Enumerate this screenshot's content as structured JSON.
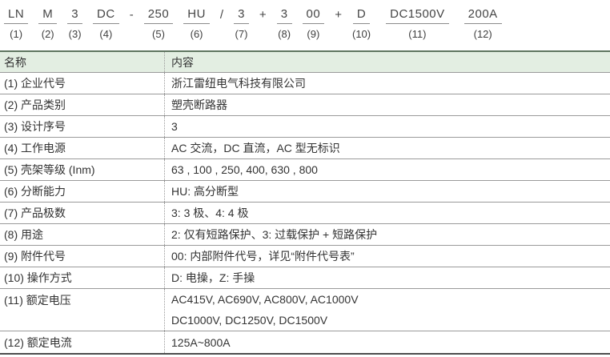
{
  "model_code": {
    "segments": [
      {
        "code": "LN",
        "num": "(1)"
      },
      {
        "code": "M",
        "num": "(2)"
      },
      {
        "code": "3",
        "num": "(3)"
      },
      {
        "code": "DC",
        "num": "(4)"
      },
      {
        "sep": "-"
      },
      {
        "code": "250",
        "num": "(5)"
      },
      {
        "code": "HU",
        "num": "(6)"
      },
      {
        "sep": "/"
      },
      {
        "code": "3",
        "num": "(7)"
      },
      {
        "sep": "+"
      },
      {
        "code": "3",
        "num": "(8)"
      },
      {
        "code": "00",
        "num": "(9)"
      },
      {
        "sep": "+"
      },
      {
        "code": "D",
        "num": "(10)"
      },
      {
        "code": "DC1500V",
        "num": "(11)"
      },
      {
        "code": "200A",
        "num": "(12)"
      }
    ]
  },
  "table": {
    "header": {
      "name": "名称",
      "content": "内容"
    },
    "rows": [
      {
        "label": "(1) 企业代号",
        "content": "浙江雷纽电气科技有限公司"
      },
      {
        "label": "(2) 产品类别",
        "content": "塑壳断路器"
      },
      {
        "label": "(3) 设计序号",
        "content": "3"
      },
      {
        "label": "(4) 工作电源",
        "content": "AC 交流，DC 直流，AC 型无标识"
      },
      {
        "label": "(5) 壳架等级 (Inm)",
        "content": "63 , 100 , 250,  400,  630 , 800"
      },
      {
        "label": "(6) 分断能力",
        "content": "HU: 高分断型"
      },
      {
        "label": "(7) 产品极数",
        "content": "3: 3 极、4: 4 极"
      },
      {
        "label": "(8) 用途",
        "content": "2: 仅有短路保护、3: 过载保护 + 短路保护"
      },
      {
        "label": "(9) 附件代号",
        "content": "00: 内部附件代号，详见“附件代号表”"
      },
      {
        "label": "(10) 操作方式",
        "content": "D: 电操，Z: 手操"
      },
      {
        "label": "(11) 额定电压",
        "content": "AC415V, AC690V, AC800V, AC1000V",
        "content2": "DC1000V, DC1250V, DC1500V"
      },
      {
        "label": "(12) 额定电流",
        "content": "125A~800A"
      }
    ]
  },
  "colors": {
    "header_bg": "#e3eee2",
    "table_top_border": "#5f7560",
    "row_line": "#9a9a9a",
    "bottom_border": "#4d4d4d",
    "text": "#333333"
  }
}
